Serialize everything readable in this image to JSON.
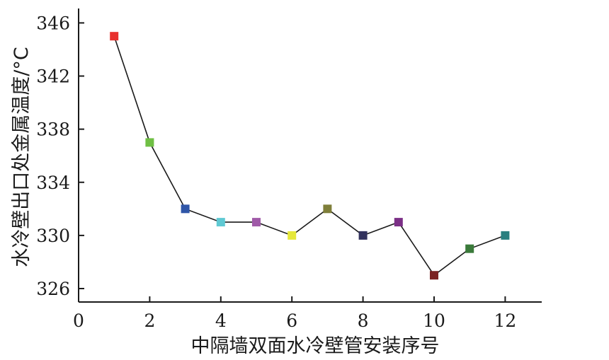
{
  "chart_data": {
    "type": "line",
    "title": "",
    "xlabel": "中隔墙双面水冷壁管安装序号",
    "ylabel": "水冷壁出口处金属温度/°C",
    "xlim": [
      0,
      13
    ],
    "ylim": [
      325,
      347
    ],
    "x_ticks": [
      0,
      2,
      4,
      6,
      8,
      10,
      12
    ],
    "y_ticks": [
      326,
      330,
      334,
      338,
      342,
      346
    ],
    "grid": false,
    "series": [
      {
        "x": [
          1,
          2,
          3,
          4,
          5,
          6,
          7,
          8,
          9,
          10,
          11,
          12
        ],
        "values": [
          345,
          337,
          332,
          331,
          331,
          330,
          332,
          330,
          331,
          327,
          329,
          330
        ],
        "marker_colors": [
          "#e8312e",
          "#6fbf44",
          "#2f56a8",
          "#5fc9d3",
          "#a05aa8",
          "#e6e83a",
          "#7f7f3a",
          "#33335e",
          "#7b2f86",
          "#7a2222",
          "#3a7a3a",
          "#2a7f7f"
        ]
      }
    ]
  }
}
